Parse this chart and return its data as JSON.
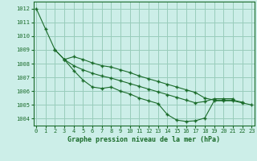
{
  "title": "Graphe pression niveau de la mer (hPa)",
  "bg_color": "#cceee8",
  "grid_color": "#99ccbb",
  "line_color": "#1a6b2a",
  "ylim": [
    1003.5,
    1012.5
  ],
  "xlim": [
    -0.3,
    23.3
  ],
  "yticks": [
    1004,
    1005,
    1006,
    1007,
    1008,
    1009,
    1010,
    1011,
    1012
  ],
  "xticks": [
    0,
    1,
    2,
    3,
    4,
    5,
    6,
    7,
    8,
    9,
    10,
    11,
    12,
    13,
    14,
    15,
    16,
    17,
    18,
    19,
    20,
    21,
    22,
    23
  ],
  "series1": [
    1012.0,
    1010.5,
    1009.0,
    1008.3,
    1007.5,
    1006.8,
    1006.3,
    1006.2,
    1006.3,
    1006.0,
    1005.8,
    1005.5,
    1005.3,
    1005.1,
    1004.3,
    1003.9,
    1003.8,
    1003.85,
    1004.05,
    1005.3,
    1005.3,
    1005.3,
    1005.15,
    1005.0
  ],
  "series2": [
    null,
    null,
    1009.0,
    1008.3,
    1008.5,
    1008.3,
    1008.05,
    1007.85,
    1007.75,
    1007.55,
    1007.35,
    1007.1,
    1006.9,
    1006.7,
    1006.5,
    1006.3,
    1006.1,
    1005.9,
    1005.5,
    1005.35,
    1005.35,
    1005.35,
    1005.2,
    null
  ],
  "series3": [
    null,
    null,
    null,
    1008.3,
    1007.85,
    1007.55,
    1007.3,
    1007.1,
    1006.95,
    1006.75,
    1006.55,
    1006.35,
    1006.15,
    1005.95,
    1005.75,
    1005.55,
    1005.35,
    1005.15,
    1005.25,
    1005.45,
    1005.45,
    1005.45,
    null,
    null
  ]
}
